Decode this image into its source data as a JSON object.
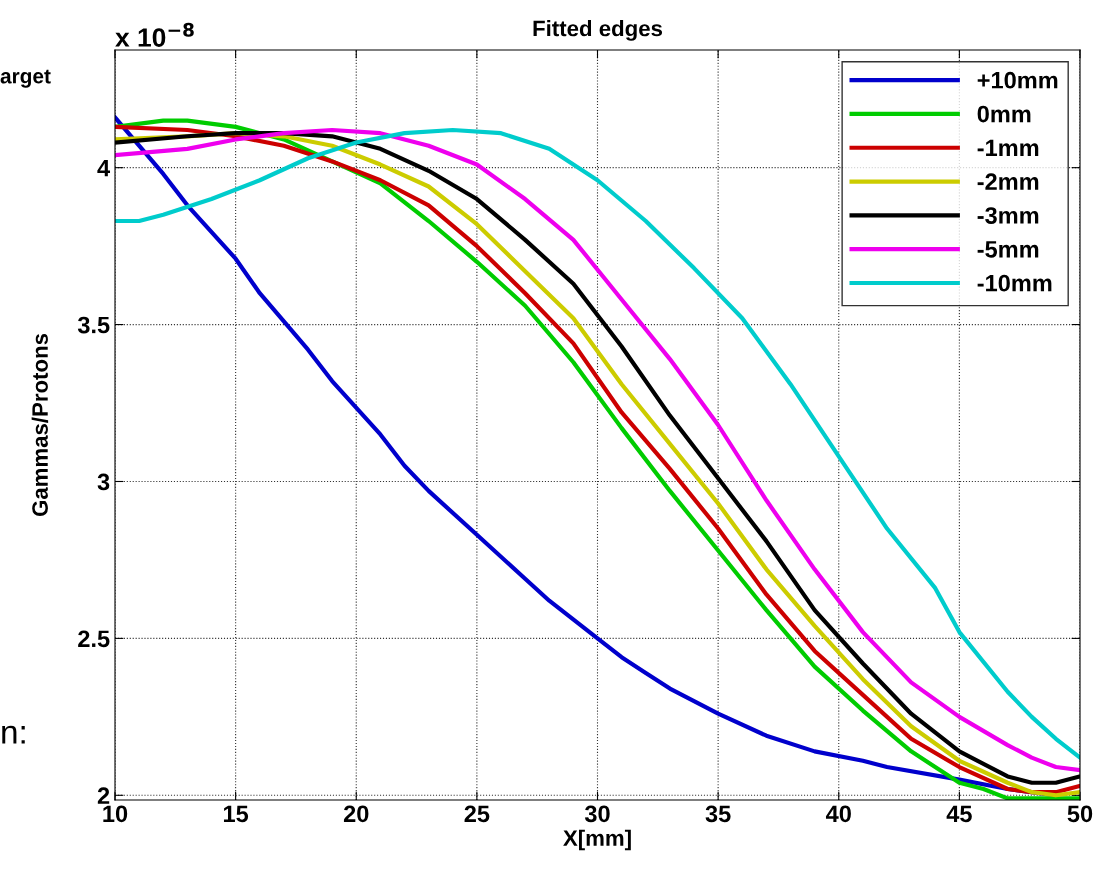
{
  "chart_data": {
    "type": "line",
    "title": "Fitted edges",
    "xlabel": "X[mm]",
    "ylabel": "Gammas/Protons",
    "annotations": [
      "x 10$^{−8}$",
      "arget",
      "n:"
    ],
    "xlim": [
      10,
      50
    ],
    "ylim": [
      1.985,
      4.375
    ],
    "xticks": [
      10,
      15,
      20,
      25,
      30,
      35,
      40,
      45,
      50
    ],
    "yticks": [
      2,
      2.5,
      3,
      3.5,
      4
    ],
    "grid": true,
    "legend": "top right",
    "marker": "none",
    "line_style": "solid",
    "series": [
      {
        "name": "+10mm",
        "color": "#0000cc",
        "x": [
          10,
          12,
          13,
          15,
          16,
          18,
          19,
          21,
          22,
          23,
          25,
          27,
          28,
          30,
          31,
          32,
          33,
          35,
          37,
          39,
          41,
          42,
          45,
          47,
          49
        ],
        "values": [
          4.16,
          3.98,
          3.88,
          3.71,
          3.6,
          3.42,
          3.32,
          3.15,
          3.05,
          2.97,
          2.83,
          2.69,
          2.62,
          2.5,
          2.44,
          2.39,
          2.34,
          2.26,
          2.19,
          2.14,
          2.11,
          2.09,
          2.05,
          2.02,
          2.0
        ]
      },
      {
        "name": "0mm",
        "color": "#00cc00",
        "x": [
          10,
          12,
          13,
          15,
          17,
          19,
          21,
          23,
          25,
          27,
          29,
          31,
          33,
          35,
          37,
          39,
          41,
          43,
          45,
          46,
          47,
          48,
          50
        ],
        "values": [
          4.13,
          4.15,
          4.15,
          4.13,
          4.09,
          4.02,
          3.95,
          3.83,
          3.7,
          3.56,
          3.38,
          3.17,
          2.97,
          2.78,
          2.59,
          2.41,
          2.27,
          2.14,
          2.04,
          2.02,
          1.99,
          1.99,
          1.99
        ]
      },
      {
        "name": "-1mm",
        "color": "#cc0000",
        "x": [
          10,
          13,
          15,
          17,
          19,
          21,
          23,
          25,
          27,
          29,
          31,
          33,
          35,
          37,
          39,
          41,
          43,
          45,
          47,
          48,
          49,
          50
        ],
        "values": [
          4.13,
          4.12,
          4.1,
          4.07,
          4.02,
          3.96,
          3.88,
          3.75,
          3.6,
          3.44,
          3.22,
          3.04,
          2.85,
          2.64,
          2.46,
          2.32,
          2.18,
          2.09,
          2.02,
          2.01,
          2.01,
          2.03
        ]
      },
      {
        "name": "-2mm",
        "color": "#cccc00",
        "x": [
          10,
          13,
          15,
          17,
          19,
          21,
          23,
          25,
          27,
          29,
          31,
          33,
          35,
          37,
          39,
          41,
          43,
          45,
          47,
          48,
          49,
          50
        ],
        "values": [
          4.09,
          4.1,
          4.11,
          4.1,
          4.07,
          4.01,
          3.94,
          3.82,
          3.67,
          3.52,
          3.31,
          3.12,
          2.93,
          2.72,
          2.54,
          2.37,
          2.22,
          2.11,
          2.04,
          2.01,
          2.0,
          2.01
        ]
      },
      {
        "name": "-3mm",
        "color": "#000000",
        "x": [
          10,
          13,
          15,
          17,
          19,
          21,
          23,
          25,
          27,
          29,
          31,
          33,
          35,
          37,
          39,
          41,
          43,
          45,
          47,
          48,
          49,
          50
        ],
        "values": [
          4.08,
          4.1,
          4.11,
          4.11,
          4.1,
          4.06,
          3.99,
          3.9,
          3.77,
          3.63,
          3.43,
          3.21,
          3.01,
          2.81,
          2.59,
          2.42,
          2.26,
          2.14,
          2.06,
          2.04,
          2.04,
          2.06
        ]
      },
      {
        "name": "-5mm",
        "color": "#ee00ee",
        "x": [
          10,
          13,
          15,
          17,
          19,
          21,
          23,
          25,
          27,
          29,
          31,
          33,
          35,
          37,
          39,
          41,
          43,
          45,
          47,
          48,
          49,
          50
        ],
        "values": [
          4.04,
          4.06,
          4.09,
          4.11,
          4.12,
          4.11,
          4.07,
          4.01,
          3.9,
          3.77,
          3.58,
          3.39,
          3.18,
          2.94,
          2.72,
          2.52,
          2.36,
          2.25,
          2.16,
          2.12,
          2.09,
          2.08
        ]
      },
      {
        "name": "-10mm",
        "color": "#00cccc",
        "x": [
          10,
          11,
          12,
          14,
          16,
          18,
          20,
          22,
          24,
          26,
          28,
          30,
          32,
          34,
          36,
          38,
          40,
          42,
          44,
          45,
          47,
          48,
          49,
          50
        ],
        "values": [
          3.83,
          3.83,
          3.85,
          3.9,
          3.96,
          4.03,
          4.08,
          4.11,
          4.12,
          4.11,
          4.06,
          3.96,
          3.83,
          3.68,
          3.52,
          3.31,
          3.08,
          2.85,
          2.66,
          2.52,
          2.33,
          2.25,
          2.18,
          2.12
        ]
      }
    ]
  }
}
